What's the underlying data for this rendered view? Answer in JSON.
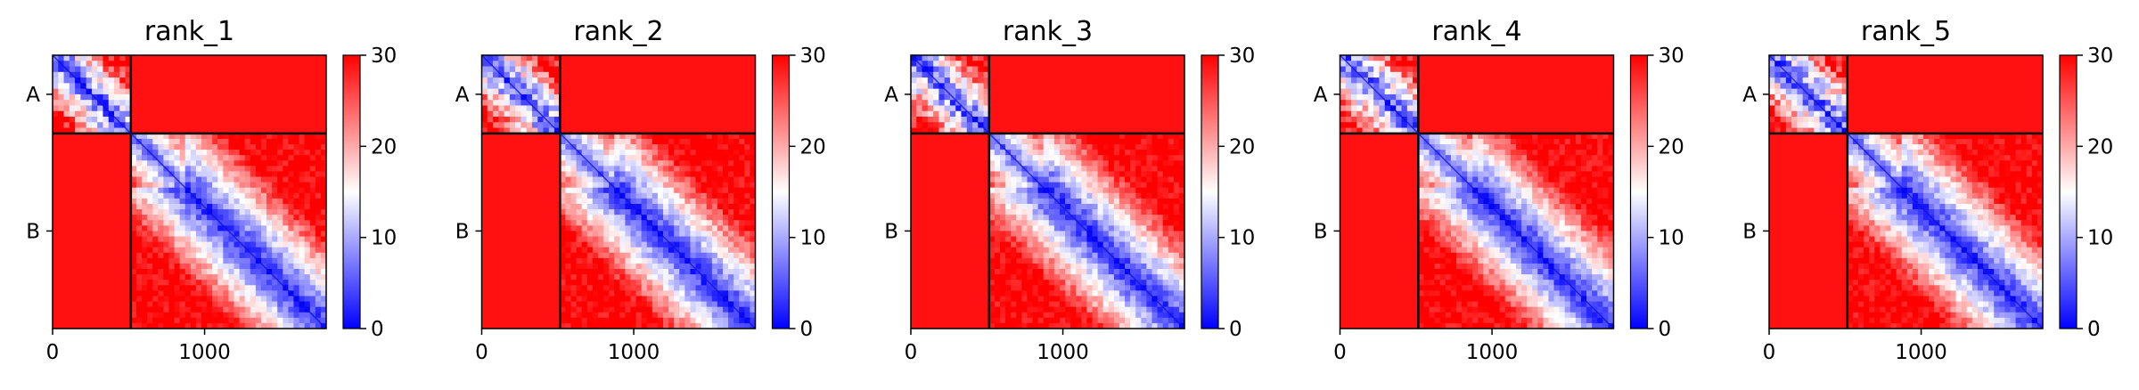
{
  "chart_data": {
    "type": "heatmap",
    "colormap": {
      "name": "bwr",
      "min_color": "#0000ff",
      "mid_color": "#ffffff",
      "max_color": "#ff0000"
    },
    "colorbar": {
      "min": 0,
      "max": 30,
      "ticks": [
        "0",
        "10",
        "20",
        "30"
      ]
    },
    "matrix_size": 1800,
    "chains": [
      {
        "label": "A",
        "start": 0,
        "end": 515
      },
      {
        "label": "B",
        "start": 515,
        "end": 1800
      }
    ],
    "x_ticks": [
      {
        "value": 0,
        "label": "0"
      },
      {
        "value": 1000,
        "label": "1000"
      }
    ],
    "description_values": {
      "intra_chain_typical": "low (blue, near diagonal)",
      "inter_chain_typical": 30
    },
    "panels": [
      {
        "title": "rank_1",
        "y_tick_labels": [
          "A",
          "B"
        ]
      },
      {
        "title": "rank_2",
        "y_tick_labels": [
          "A",
          "B"
        ]
      },
      {
        "title": "rank_3",
        "y_tick_labels": [
          "A",
          "B"
        ]
      },
      {
        "title": "rank_4",
        "y_tick_labels": [
          "A",
          "B"
        ]
      },
      {
        "title": "rank_5",
        "y_tick_labels": [
          "A",
          "B"
        ]
      }
    ]
  }
}
